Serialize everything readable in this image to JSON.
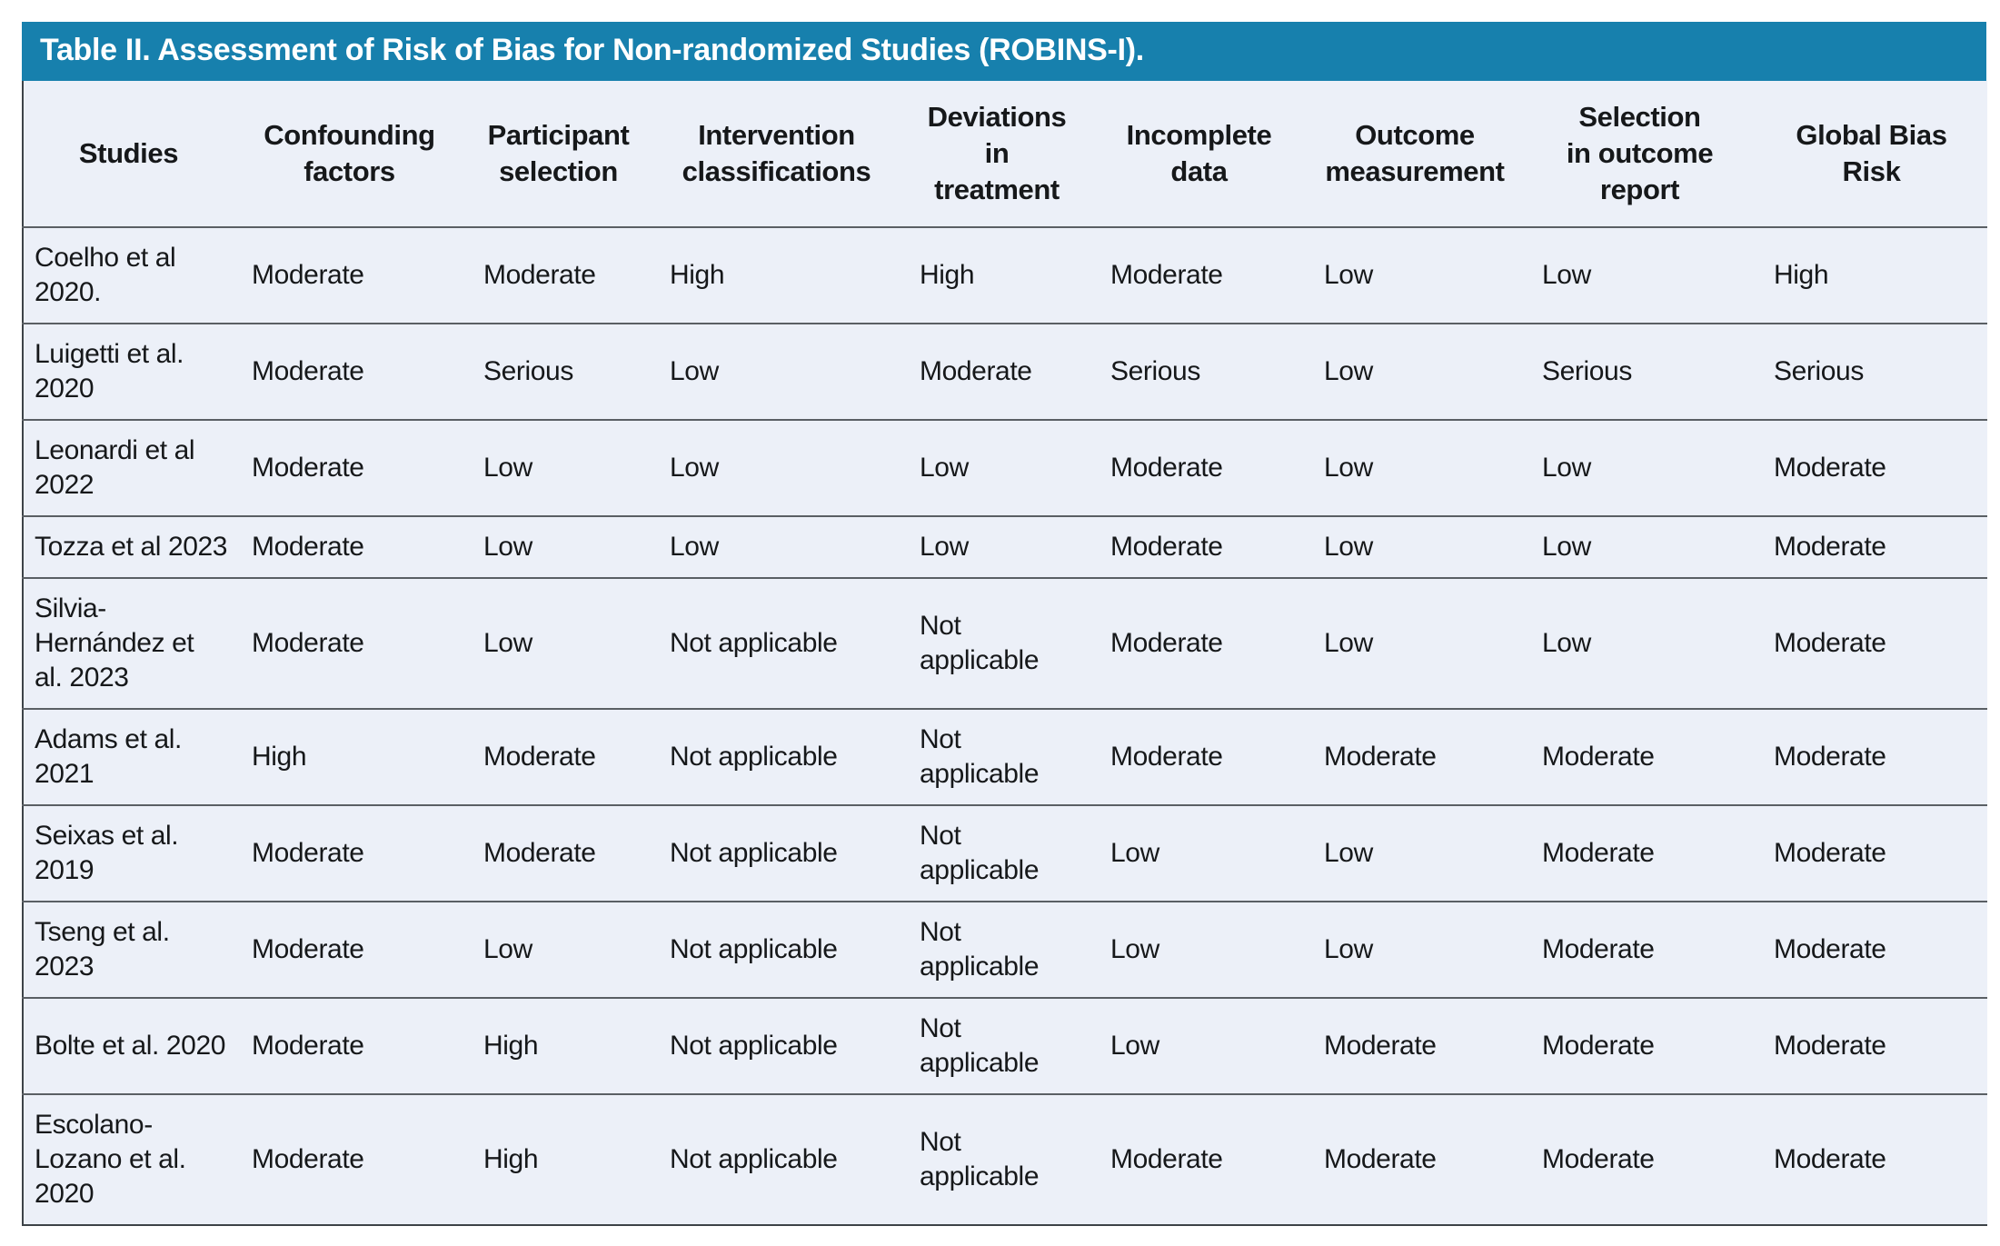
{
  "title": "Table II. Assessment of Risk of Bias for Non-randomized Studies (ROBINS-I).",
  "colors": {
    "title_bar_bg": "#1780ad",
    "title_text": "#ffffff",
    "table_bg": "#ecf0f8",
    "row_separator": "#5a5f64",
    "body_text": "#16181a"
  },
  "table": {
    "columns": [
      "Studies",
      "Confounding\nfactors",
      "Participant\nselection",
      "Intervention\nclassifications",
      "Deviations\nin\ntreatment",
      "Incomplete\ndata",
      "Outcome\nmeasurement",
      "Selection\nin outcome\nreport",
      "Global Bias\nRisk"
    ],
    "rows": [
      {
        "study": "Coelho et al 2020.",
        "values": [
          "Moderate",
          "Moderate",
          "High",
          "High",
          "Moderate",
          "Low",
          "Low",
          "High"
        ]
      },
      {
        "study": "Luigetti et al. 2020",
        "values": [
          "Moderate",
          "Serious",
          "Low",
          "Moderate",
          "Serious",
          "Low",
          "Serious",
          "Serious"
        ]
      },
      {
        "study": "Leonardi et al 2022",
        "values": [
          "Moderate",
          "Low",
          "Low",
          "Low",
          "Moderate",
          "Low",
          "Low",
          "Moderate"
        ]
      },
      {
        "study": "Tozza et al 2023",
        "values": [
          "Moderate",
          "Low",
          "Low",
          "Low",
          "Moderate",
          "Low",
          "Low",
          "Moderate"
        ]
      },
      {
        "study": "Silvia-Hernández et al. 2023",
        "values": [
          "Moderate",
          "Low",
          "Not applicable",
          "Not applicable",
          "Moderate",
          "Low",
          "Low",
          "Moderate"
        ]
      },
      {
        "study": "Adams et al. 2021",
        "values": [
          "High",
          "Moderate",
          "Not applicable",
          "Not applicable",
          "Moderate",
          "Moderate",
          "Moderate",
          "Moderate"
        ]
      },
      {
        "study": "Seixas et al. 2019",
        "values": [
          "Moderate",
          "Moderate",
          "Not applicable",
          "Not applicable",
          "Low",
          "Low",
          "Moderate",
          "Moderate"
        ]
      },
      {
        "study": "Tseng et al. 2023",
        "values": [
          "Moderate",
          "Low",
          "Not applicable",
          "Not applicable",
          "Low",
          "Low",
          "Moderate",
          "Moderate"
        ]
      },
      {
        "study": "Bolte et al. 2020",
        "values": [
          "Moderate",
          "High",
          "Not applicable",
          "Not applicable",
          "Low",
          "Moderate",
          "Moderate",
          "Moderate"
        ]
      },
      {
        "study": "Escolano-Lozano et al. 2020",
        "values": [
          "Moderate",
          "High",
          "Not applicable",
          "Not applicable",
          "Moderate",
          "Moderate",
          "Moderate",
          "Moderate"
        ]
      }
    ]
  }
}
